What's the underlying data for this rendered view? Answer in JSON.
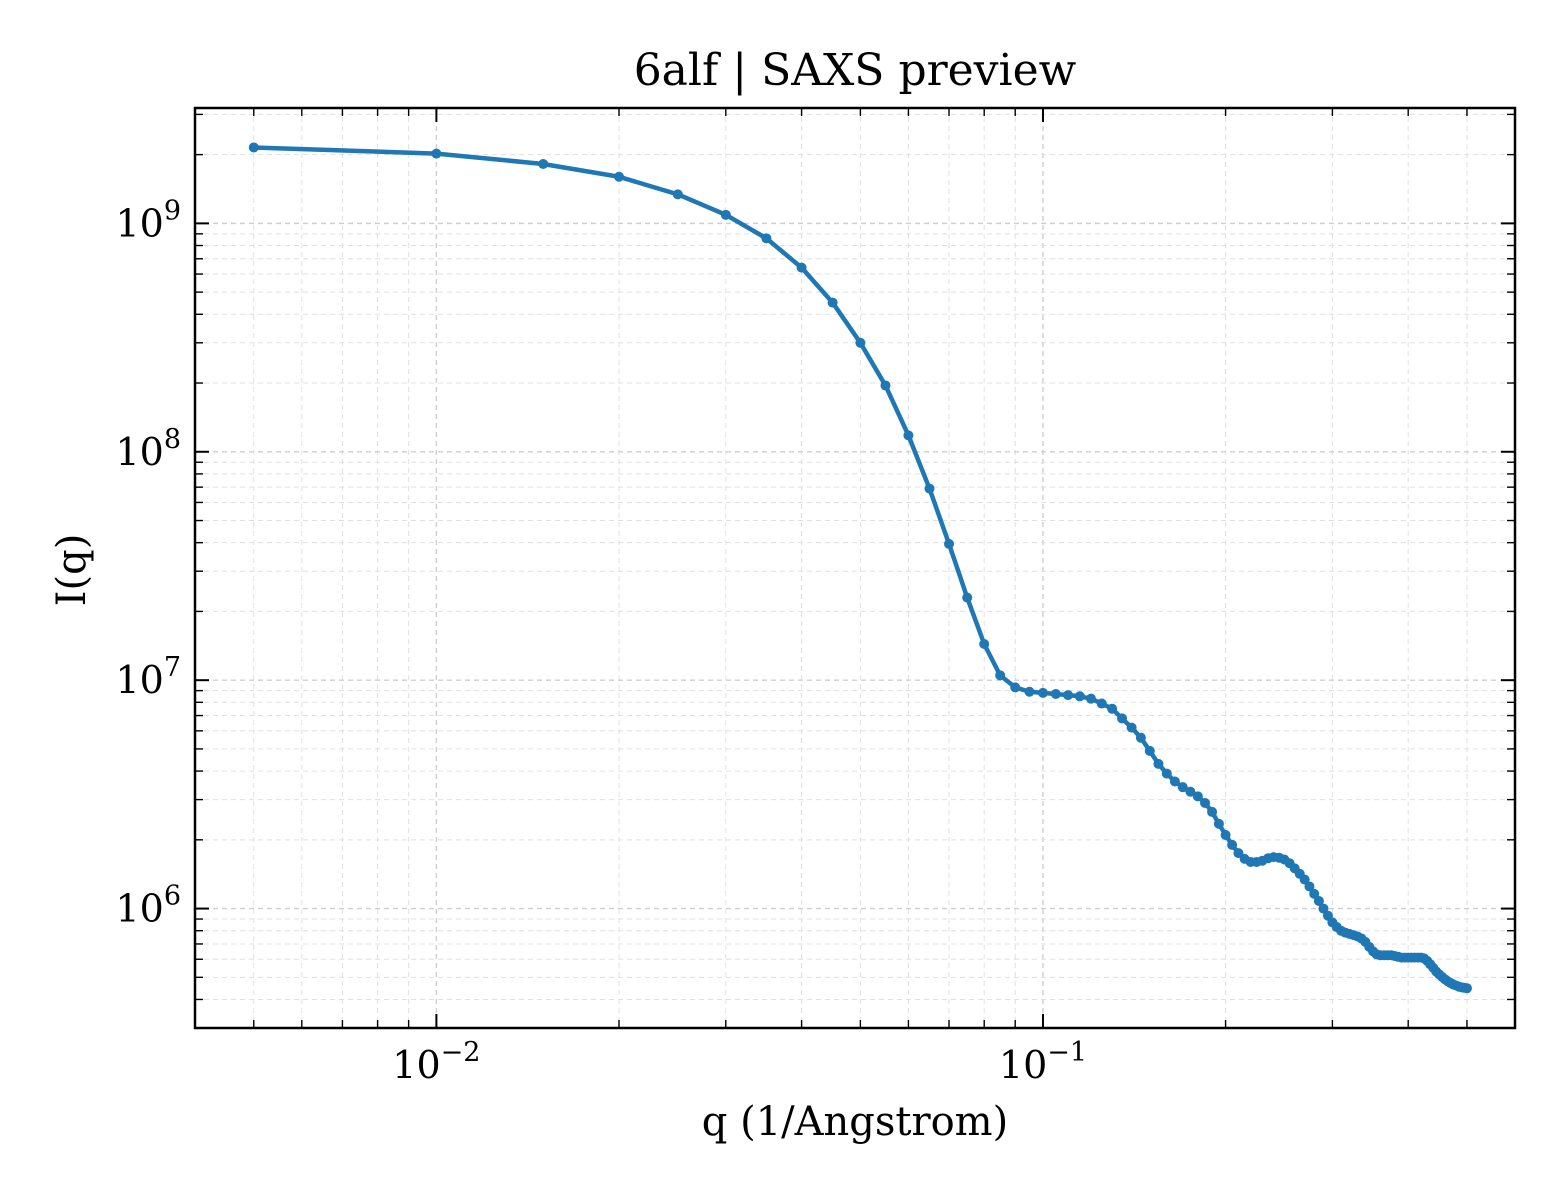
{
  "chart_data": {
    "type": "line",
    "title": "6alf | SAXS preview",
    "xlabel": "q (1/Angstrom)",
    "ylabel": "I(q)",
    "xscale": "log",
    "yscale": "log",
    "xlim": [
      0.004,
      0.6
    ],
    "ylim": [
      300000,
      3200000000
    ],
    "grid": true,
    "color": "#1f77b4",
    "x_ticks": [
      {
        "value": 0.01,
        "base": "10",
        "exp": "−2"
      },
      {
        "value": 0.1,
        "base": "10",
        "exp": "−1"
      }
    ],
    "y_ticks": [
      {
        "value": 1000000,
        "base": "10",
        "exp": "6"
      },
      {
        "value": 10000000,
        "base": "10",
        "exp": "7"
      },
      {
        "value": 100000000,
        "base": "10",
        "exp": "8"
      },
      {
        "value": 1000000000,
        "base": "10",
        "exp": "9"
      }
    ],
    "series": [
      {
        "x": [
          0.005,
          0.01,
          0.015,
          0.02,
          0.025,
          0.03,
          0.035,
          0.04,
          0.045,
          0.05,
          0.055,
          0.06,
          0.065,
          0.07,
          0.075,
          0.08,
          0.085,
          0.09,
          0.095,
          0.1,
          0.105,
          0.11,
          0.115,
          0.12,
          0.125,
          0.13,
          0.135,
          0.14,
          0.145,
          0.15,
          0.155,
          0.16,
          0.165,
          0.17,
          0.175,
          0.18,
          0.185,
          0.19,
          0.195,
          0.2,
          0.205,
          0.21,
          0.215,
          0.22,
          0.225,
          0.23,
          0.235,
          0.24,
          0.245,
          0.25,
          0.255,
          0.26,
          0.265,
          0.27,
          0.275,
          0.28,
          0.285,
          0.29,
          0.295,
          0.3,
          0.305,
          0.31,
          0.315,
          0.32,
          0.325,
          0.33,
          0.335,
          0.34,
          0.345,
          0.35,
          0.355,
          0.36,
          0.365,
          0.37,
          0.375,
          0.38,
          0.385,
          0.39,
          0.395,
          0.4,
          0.405,
          0.41,
          0.415,
          0.42,
          0.425,
          0.43,
          0.435,
          0.44,
          0.445,
          0.45,
          0.455,
          0.46,
          0.465,
          0.47,
          0.475,
          0.48,
          0.485,
          0.49,
          0.495,
          0.5
        ],
        "y": [
          2150000000,
          2020000000,
          1820000000,
          1600000000,
          1340000000,
          1090000000,
          860000000,
          640000000,
          450000000,
          300000000,
          195000000,
          118000000,
          69000000,
          39500000,
          23000000,
          14400000,
          10500000,
          9300000,
          8900000,
          8800000,
          8700000,
          8600000,
          8500000,
          8300000,
          7900000,
          7500000,
          6800000,
          6200000,
          5600000,
          4900000,
          4300000,
          3900000,
          3600000,
          3400000,
          3250000,
          3100000,
          2900000,
          2650000,
          2350000,
          2100000,
          1900000,
          1750000,
          1650000,
          1600000,
          1600000,
          1620000,
          1660000,
          1680000,
          1670000,
          1640000,
          1580000,
          1500000,
          1420000,
          1340000,
          1250000,
          1160000,
          1080000,
          1000000,
          930000,
          870000,
          830000,
          800000,
          785000,
          775000,
          765000,
          755000,
          740000,
          715000,
          680000,
          650000,
          630000,
          625000,
          625000,
          625000,
          625000,
          620000,
          615000,
          610000,
          610000,
          610000,
          610000,
          610000,
          610000,
          610000,
          605000,
          590000,
          570000,
          550000,
          530000,
          515000,
          502000,
          490000,
          480000,
          472000,
          465000,
          460000,
          455000,
          452000,
          450000,
          448000
        ]
      }
    ]
  }
}
